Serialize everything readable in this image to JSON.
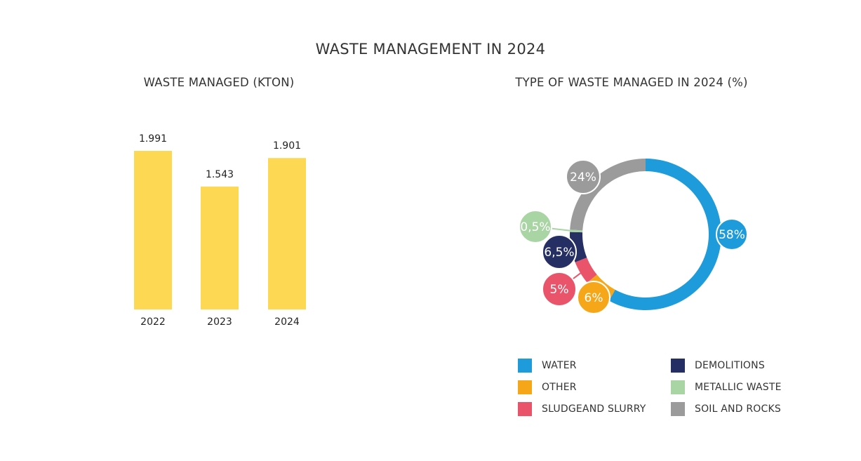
{
  "title": "WASTE MANAGEMENT IN 2024",
  "colors": {
    "bar": "#FDD853",
    "water": "#1E9BDB",
    "other": "#F5A719",
    "sludge": "#E9546B",
    "demolitions": "#252F63",
    "metallic": "#A9D4A4",
    "soil": "#9B9B9B"
  },
  "chart_data": [
    {
      "type": "bar",
      "title": "WASTE MANAGED (KTON)",
      "categories": [
        "2022",
        "2023",
        "2024"
      ],
      "values": [
        1991,
        1543,
        1901
      ],
      "value_labels": [
        "1.991",
        "1.543",
        "1.901"
      ],
      "ylim": [
        0,
        2000
      ],
      "grid": false,
      "xlabel": "",
      "ylabel": ""
    },
    {
      "type": "pie",
      "title": "TYPE OF WASTE MANAGED IN 2024 (%)",
      "slices": [
        {
          "key": "water",
          "name": "WATER",
          "value": 58,
          "label": "58%"
        },
        {
          "key": "other",
          "name": "OTHER",
          "value": 6,
          "label": "6%"
        },
        {
          "key": "sludge",
          "name": "SLUDGE AND SLURRY",
          "value": 5,
          "label": "5%"
        },
        {
          "key": "demolitions",
          "name": "DEMOLITIONS",
          "value": 6.5,
          "label": "6,5%"
        },
        {
          "key": "metallic",
          "name": "METALLIC WASTE",
          "value": 0.5,
          "label": "0,5%"
        },
        {
          "key": "soil",
          "name": "SOIL AND ROCKS",
          "value": 24,
          "label": "24%"
        }
      ],
      "legend": [
        {
          "key": "water",
          "label": "WATER"
        },
        {
          "key": "demolitions",
          "label": "DEMOLITIONS"
        },
        {
          "key": "other",
          "label": "OTHER"
        },
        {
          "key": "metallic",
          "label": "METALLIC WASTE"
        },
        {
          "key": "sludge",
          "label": "SLUDGEAND SLURRY"
        },
        {
          "key": "soil",
          "label": "SOIL AND ROCKS"
        }
      ],
      "legend_position": "bottom"
    }
  ]
}
